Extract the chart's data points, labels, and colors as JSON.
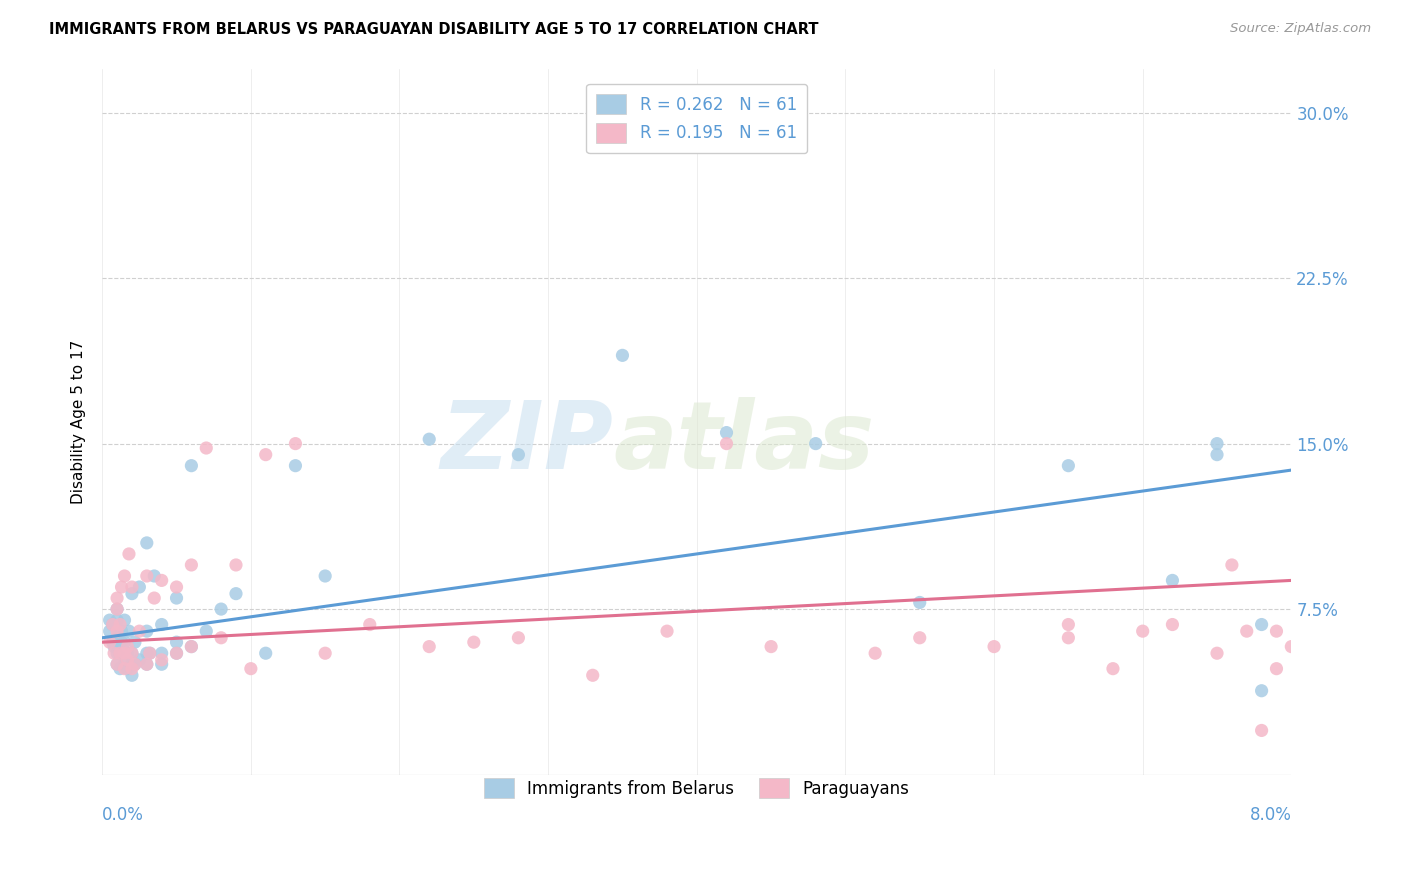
{
  "title": "IMMIGRANTS FROM BELARUS VS PARAGUAYAN DISABILITY AGE 5 TO 17 CORRELATION CHART",
  "source": "Source: ZipAtlas.com",
  "ylabel": "Disability Age 5 to 17",
  "ytick_labels": [
    "7.5%",
    "15.0%",
    "22.5%",
    "30.0%"
  ],
  "ytick_values": [
    0.075,
    0.15,
    0.225,
    0.3
  ],
  "xlim": [
    0.0,
    0.08
  ],
  "ylim": [
    0.0,
    0.32
  ],
  "blue_color": "#a8cce4",
  "pink_color": "#f4b8c8",
  "blue_line_color": "#5b9bd5",
  "pink_line_color": "#e07090",
  "watermark_zip": "ZIP",
  "watermark_atlas": "atlas",
  "blue_scatter_x": [
    0.0005,
    0.0005,
    0.0007,
    0.0007,
    0.0008,
    0.001,
    0.001,
    0.001,
    0.001,
    0.001,
    0.0012,
    0.0012,
    0.0013,
    0.0013,
    0.0015,
    0.0015,
    0.0015,
    0.0015,
    0.0017,
    0.0017,
    0.0018,
    0.002,
    0.002,
    0.002,
    0.002,
    0.0022,
    0.0022,
    0.0025,
    0.0025,
    0.003,
    0.003,
    0.003,
    0.003,
    0.0032,
    0.0035,
    0.004,
    0.004,
    0.004,
    0.005,
    0.005,
    0.005,
    0.006,
    0.006,
    0.007,
    0.008,
    0.009,
    0.011,
    0.013,
    0.015,
    0.022,
    0.028,
    0.035,
    0.042,
    0.048,
    0.055,
    0.065,
    0.072,
    0.078,
    0.075,
    0.075,
    0.078
  ],
  "blue_scatter_y": [
    0.065,
    0.07,
    0.06,
    0.068,
    0.058,
    0.055,
    0.062,
    0.07,
    0.075,
    0.05,
    0.048,
    0.055,
    0.06,
    0.065,
    0.05,
    0.055,
    0.06,
    0.07,
    0.048,
    0.055,
    0.065,
    0.045,
    0.05,
    0.055,
    0.082,
    0.05,
    0.06,
    0.052,
    0.085,
    0.05,
    0.055,
    0.065,
    0.105,
    0.055,
    0.09,
    0.05,
    0.055,
    0.068,
    0.055,
    0.06,
    0.08,
    0.058,
    0.14,
    0.065,
    0.075,
    0.082,
    0.055,
    0.14,
    0.09,
    0.152,
    0.145,
    0.19,
    0.155,
    0.15,
    0.078,
    0.14,
    0.088,
    0.068,
    0.15,
    0.145,
    0.038
  ],
  "pink_scatter_x": [
    0.0005,
    0.0007,
    0.0008,
    0.001,
    0.001,
    0.001,
    0.001,
    0.0012,
    0.0012,
    0.0013,
    0.0015,
    0.0015,
    0.0015,
    0.0017,
    0.0017,
    0.0018,
    0.002,
    0.002,
    0.002,
    0.0022,
    0.0025,
    0.003,
    0.003,
    0.0032,
    0.0035,
    0.004,
    0.004,
    0.005,
    0.005,
    0.006,
    0.006,
    0.007,
    0.008,
    0.009,
    0.01,
    0.011,
    0.013,
    0.015,
    0.018,
    0.022,
    0.025,
    0.028,
    0.033,
    0.038,
    0.042,
    0.045,
    0.052,
    0.055,
    0.06,
    0.065,
    0.065,
    0.068,
    0.07,
    0.072,
    0.075,
    0.076,
    0.077,
    0.078,
    0.079,
    0.079,
    0.08
  ],
  "pink_scatter_y": [
    0.06,
    0.068,
    0.055,
    0.075,
    0.05,
    0.065,
    0.08,
    0.055,
    0.068,
    0.085,
    0.048,
    0.055,
    0.09,
    0.052,
    0.058,
    0.1,
    0.048,
    0.055,
    0.085,
    0.05,
    0.065,
    0.05,
    0.09,
    0.055,
    0.08,
    0.052,
    0.088,
    0.055,
    0.085,
    0.058,
    0.095,
    0.148,
    0.062,
    0.095,
    0.048,
    0.145,
    0.15,
    0.055,
    0.068,
    0.058,
    0.06,
    0.062,
    0.045,
    0.065,
    0.15,
    0.058,
    0.055,
    0.062,
    0.058,
    0.062,
    0.068,
    0.048,
    0.065,
    0.068,
    0.055,
    0.095,
    0.065,
    0.02,
    0.048,
    0.065,
    0.058
  ],
  "blue_trend_x": [
    0.0,
    0.08
  ],
  "blue_trend_y": [
    0.062,
    0.138
  ],
  "pink_trend_x": [
    0.0,
    0.08
  ],
  "pink_trend_y": [
    0.06,
    0.088
  ],
  "xtick_positions": [
    0.0,
    0.01,
    0.02,
    0.03,
    0.04,
    0.05,
    0.06,
    0.07,
    0.08
  ],
  "grid_color": "#d0d0d0",
  "grid_linestyle": "--",
  "legend1_labels": [
    "R = 0.262   N = 61",
    "R = 0.195   N = 61"
  ],
  "legend2_labels": [
    "Immigrants from Belarus",
    "Paraguayans"
  ]
}
